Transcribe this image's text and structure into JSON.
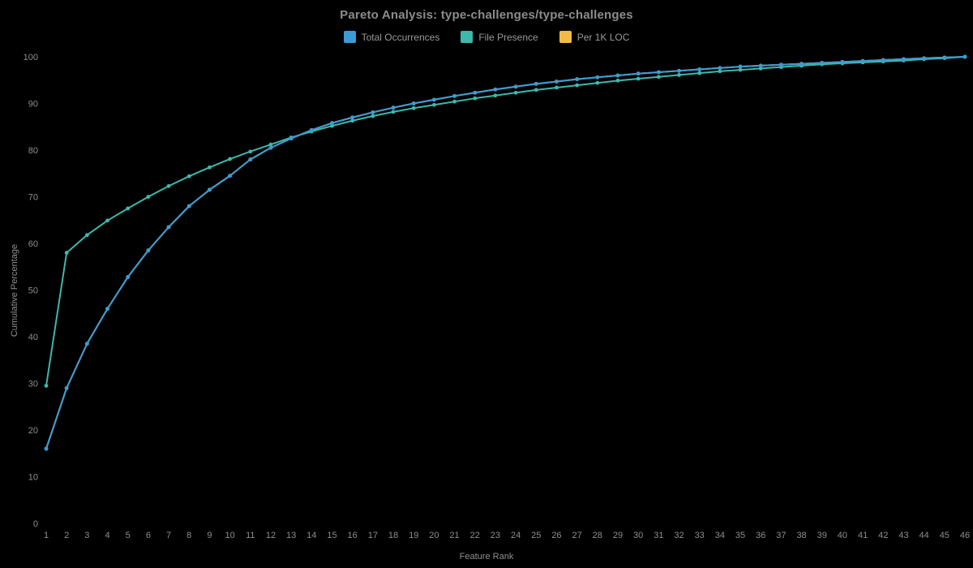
{
  "chart_data": {
    "type": "line",
    "title": "Pareto Analysis: type-challenges/type-challenges",
    "xlabel": "Feature Rank",
    "ylabel": "Cumulative Percentage",
    "x": [
      1,
      2,
      3,
      4,
      5,
      6,
      7,
      8,
      9,
      10,
      11,
      12,
      13,
      14,
      15,
      16,
      17,
      18,
      19,
      20,
      21,
      22,
      23,
      24,
      25,
      26,
      27,
      28,
      29,
      30,
      31,
      32,
      33,
      34,
      35,
      36,
      37,
      38,
      39,
      40,
      41,
      42,
      43,
      44,
      45,
      46
    ],
    "ylim": [
      0,
      100
    ],
    "yticks": [
      0,
      10,
      20,
      30,
      40,
      50,
      60,
      70,
      80,
      90,
      100
    ],
    "grid": false,
    "legend_position": "top-center",
    "series": [
      {
        "name": "Total Occurrences",
        "color": "#3a9bd5",
        "values": [
          16.0,
          29.0,
          38.5,
          46.0,
          52.8,
          58.5,
          63.5,
          68.0,
          71.5,
          74.5,
          78.0,
          80.5,
          82.5,
          84.3,
          85.8,
          87.0,
          88.1,
          89.1,
          90.0,
          90.8,
          91.6,
          92.3,
          93.0,
          93.6,
          94.2,
          94.7,
          95.2,
          95.6,
          96.0,
          96.4,
          96.7,
          97.0,
          97.3,
          97.6,
          97.9,
          98.1,
          98.3,
          98.5,
          98.7,
          98.9,
          99.1,
          99.3,
          99.5,
          99.7,
          99.85,
          100.0
        ]
      },
      {
        "name": "File Presence",
        "color": "#3cb8ad",
        "values": [
          29.5,
          58.0,
          61.8,
          64.9,
          67.5,
          70.0,
          72.3,
          74.4,
          76.3,
          78.1,
          79.7,
          81.2,
          82.7,
          84.0,
          85.2,
          86.3,
          87.3,
          88.2,
          89.0,
          89.7,
          90.4,
          91.1,
          91.7,
          92.3,
          92.9,
          93.4,
          93.9,
          94.4,
          94.9,
          95.3,
          95.7,
          96.1,
          96.5,
          96.9,
          97.2,
          97.5,
          97.8,
          98.1,
          98.4,
          98.6,
          98.8,
          99.0,
          99.2,
          99.5,
          99.7,
          100.0
        ]
      },
      {
        "name": "Per 1K LOC",
        "color": "#f3bb45",
        "values": [
          16.0,
          29.0,
          38.5,
          46.0,
          52.8,
          58.5,
          63.5,
          68.0,
          71.5,
          74.5,
          78.0,
          80.5,
          82.5,
          84.3,
          85.8,
          87.0,
          88.1,
          89.1,
          90.0,
          90.8,
          91.6,
          92.3,
          93.0,
          93.6,
          94.2,
          94.7,
          95.2,
          95.6,
          96.0,
          96.4,
          96.7,
          97.0,
          97.3,
          97.6,
          97.9,
          98.1,
          98.3,
          98.5,
          98.7,
          98.9,
          99.1,
          99.3,
          99.5,
          99.7,
          99.85,
          100.0
        ]
      }
    ]
  }
}
